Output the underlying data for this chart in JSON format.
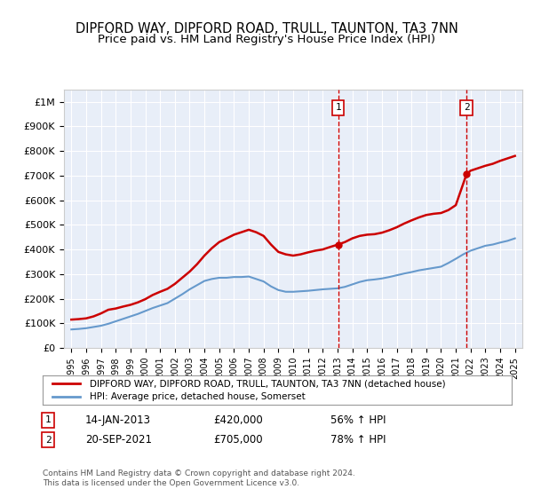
{
  "title": "DIPFORD WAY, DIPFORD ROAD, TRULL, TAUNTON, TA3 7NN",
  "subtitle": "Price paid vs. HM Land Registry's House Price Index (HPI)",
  "title_fontsize": 11,
  "subtitle_fontsize": 10,
  "bg_color": "#f0f4ff",
  "plot_bg_color": "#e8eef8",
  "xlim": [
    1994.5,
    2025.5
  ],
  "ylim": [
    0,
    1050000
  ],
  "yticks": [
    0,
    100000,
    200000,
    300000,
    400000,
    500000,
    600000,
    700000,
    800000,
    900000,
    1000000
  ],
  "ytick_labels": [
    "£0",
    "£100K",
    "£200K",
    "£300K",
    "£400K",
    "£500K",
    "£600K",
    "£700K",
    "£800K",
    "£900K",
    "£1M"
  ],
  "xticks": [
    1995,
    1996,
    1997,
    1998,
    1999,
    2000,
    2001,
    2002,
    2003,
    2004,
    2005,
    2006,
    2007,
    2008,
    2009,
    2010,
    2011,
    2012,
    2013,
    2014,
    2015,
    2016,
    2017,
    2018,
    2019,
    2020,
    2021,
    2022,
    2023,
    2024,
    2025
  ],
  "red_line_color": "#cc0000",
  "blue_line_color": "#6699cc",
  "vline_color": "#cc0000",
  "marker1_x": 2013.04,
  "marker1_y": 420000,
  "marker2_x": 2021.72,
  "marker2_y": 705000,
  "legend_label1": "DIPFORD WAY, DIPFORD ROAD, TRULL, TAUNTON, TA3 7NN (detached house)",
  "legend_label2": "HPI: Average price, detached house, Somerset",
  "annotation1_label": "1",
  "annotation1_date": "14-JAN-2013",
  "annotation1_price": "£420,000",
  "annotation1_hpi": "56% ↑ HPI",
  "annotation2_label": "2",
  "annotation2_date": "20-SEP-2021",
  "annotation2_price": "£705,000",
  "annotation2_hpi": "78% ↑ HPI",
  "footer": "Contains HM Land Registry data © Crown copyright and database right 2024.\nThis data is licensed under the Open Government Licence v3.0.",
  "red_x": [
    1995.0,
    1995.5,
    1996.0,
    1996.5,
    1997.0,
    1997.5,
    1998.0,
    1998.5,
    1999.0,
    1999.5,
    2000.0,
    2000.5,
    2001.0,
    2001.5,
    2002.0,
    2002.5,
    2003.0,
    2003.5,
    2004.0,
    2004.5,
    2005.0,
    2005.5,
    2006.0,
    2006.5,
    2007.0,
    2007.5,
    2008.0,
    2008.5,
    2009.0,
    2009.5,
    2010.0,
    2010.5,
    2011.0,
    2011.5,
    2012.0,
    2012.5,
    2013.04,
    2013.5,
    2014.0,
    2014.5,
    2015.0,
    2015.5,
    2016.0,
    2016.5,
    2017.0,
    2017.5,
    2018.0,
    2018.5,
    2019.0,
    2019.5,
    2020.0,
    2020.5,
    2021.0,
    2021.72,
    2022.0,
    2022.5,
    2023.0,
    2023.5,
    2024.0,
    2024.5,
    2025.0
  ],
  "red_y": [
    115000,
    117000,
    120000,
    128000,
    140000,
    155000,
    160000,
    168000,
    175000,
    185000,
    198000,
    215000,
    228000,
    240000,
    260000,
    285000,
    310000,
    340000,
    375000,
    405000,
    430000,
    445000,
    460000,
    470000,
    480000,
    470000,
    455000,
    420000,
    390000,
    380000,
    375000,
    380000,
    388000,
    395000,
    400000,
    410000,
    420000,
    430000,
    445000,
    455000,
    460000,
    462000,
    468000,
    478000,
    490000,
    505000,
    518000,
    530000,
    540000,
    545000,
    548000,
    560000,
    580000,
    705000,
    720000,
    730000,
    740000,
    748000,
    760000,
    770000,
    780000
  ],
  "blue_x": [
    1995.0,
    1995.5,
    1996.0,
    1996.5,
    1997.0,
    1997.5,
    1998.0,
    1998.5,
    1999.0,
    1999.5,
    2000.0,
    2000.5,
    2001.0,
    2001.5,
    2002.0,
    2002.5,
    2003.0,
    2003.5,
    2004.0,
    2004.5,
    2005.0,
    2005.5,
    2006.0,
    2006.5,
    2007.0,
    2007.5,
    2008.0,
    2008.5,
    2009.0,
    2009.5,
    2010.0,
    2010.5,
    2011.0,
    2011.5,
    2012.0,
    2012.5,
    2013.0,
    2013.5,
    2014.0,
    2014.5,
    2015.0,
    2015.5,
    2016.0,
    2016.5,
    2017.0,
    2017.5,
    2018.0,
    2018.5,
    2019.0,
    2019.5,
    2020.0,
    2020.5,
    2021.0,
    2021.5,
    2022.0,
    2022.5,
    2023.0,
    2023.5,
    2024.0,
    2024.5,
    2025.0
  ],
  "blue_y": [
    75000,
    77000,
    80000,
    85000,
    90000,
    98000,
    108000,
    118000,
    128000,
    138000,
    150000,
    162000,
    172000,
    182000,
    200000,
    218000,
    238000,
    255000,
    272000,
    280000,
    285000,
    285000,
    288000,
    288000,
    290000,
    280000,
    270000,
    250000,
    235000,
    228000,
    228000,
    230000,
    232000,
    235000,
    238000,
    240000,
    242000,
    248000,
    258000,
    268000,
    275000,
    278000,
    282000,
    288000,
    295000,
    302000,
    308000,
    315000,
    320000,
    325000,
    330000,
    345000,
    362000,
    380000,
    395000,
    405000,
    415000,
    420000,
    428000,
    435000,
    445000
  ]
}
